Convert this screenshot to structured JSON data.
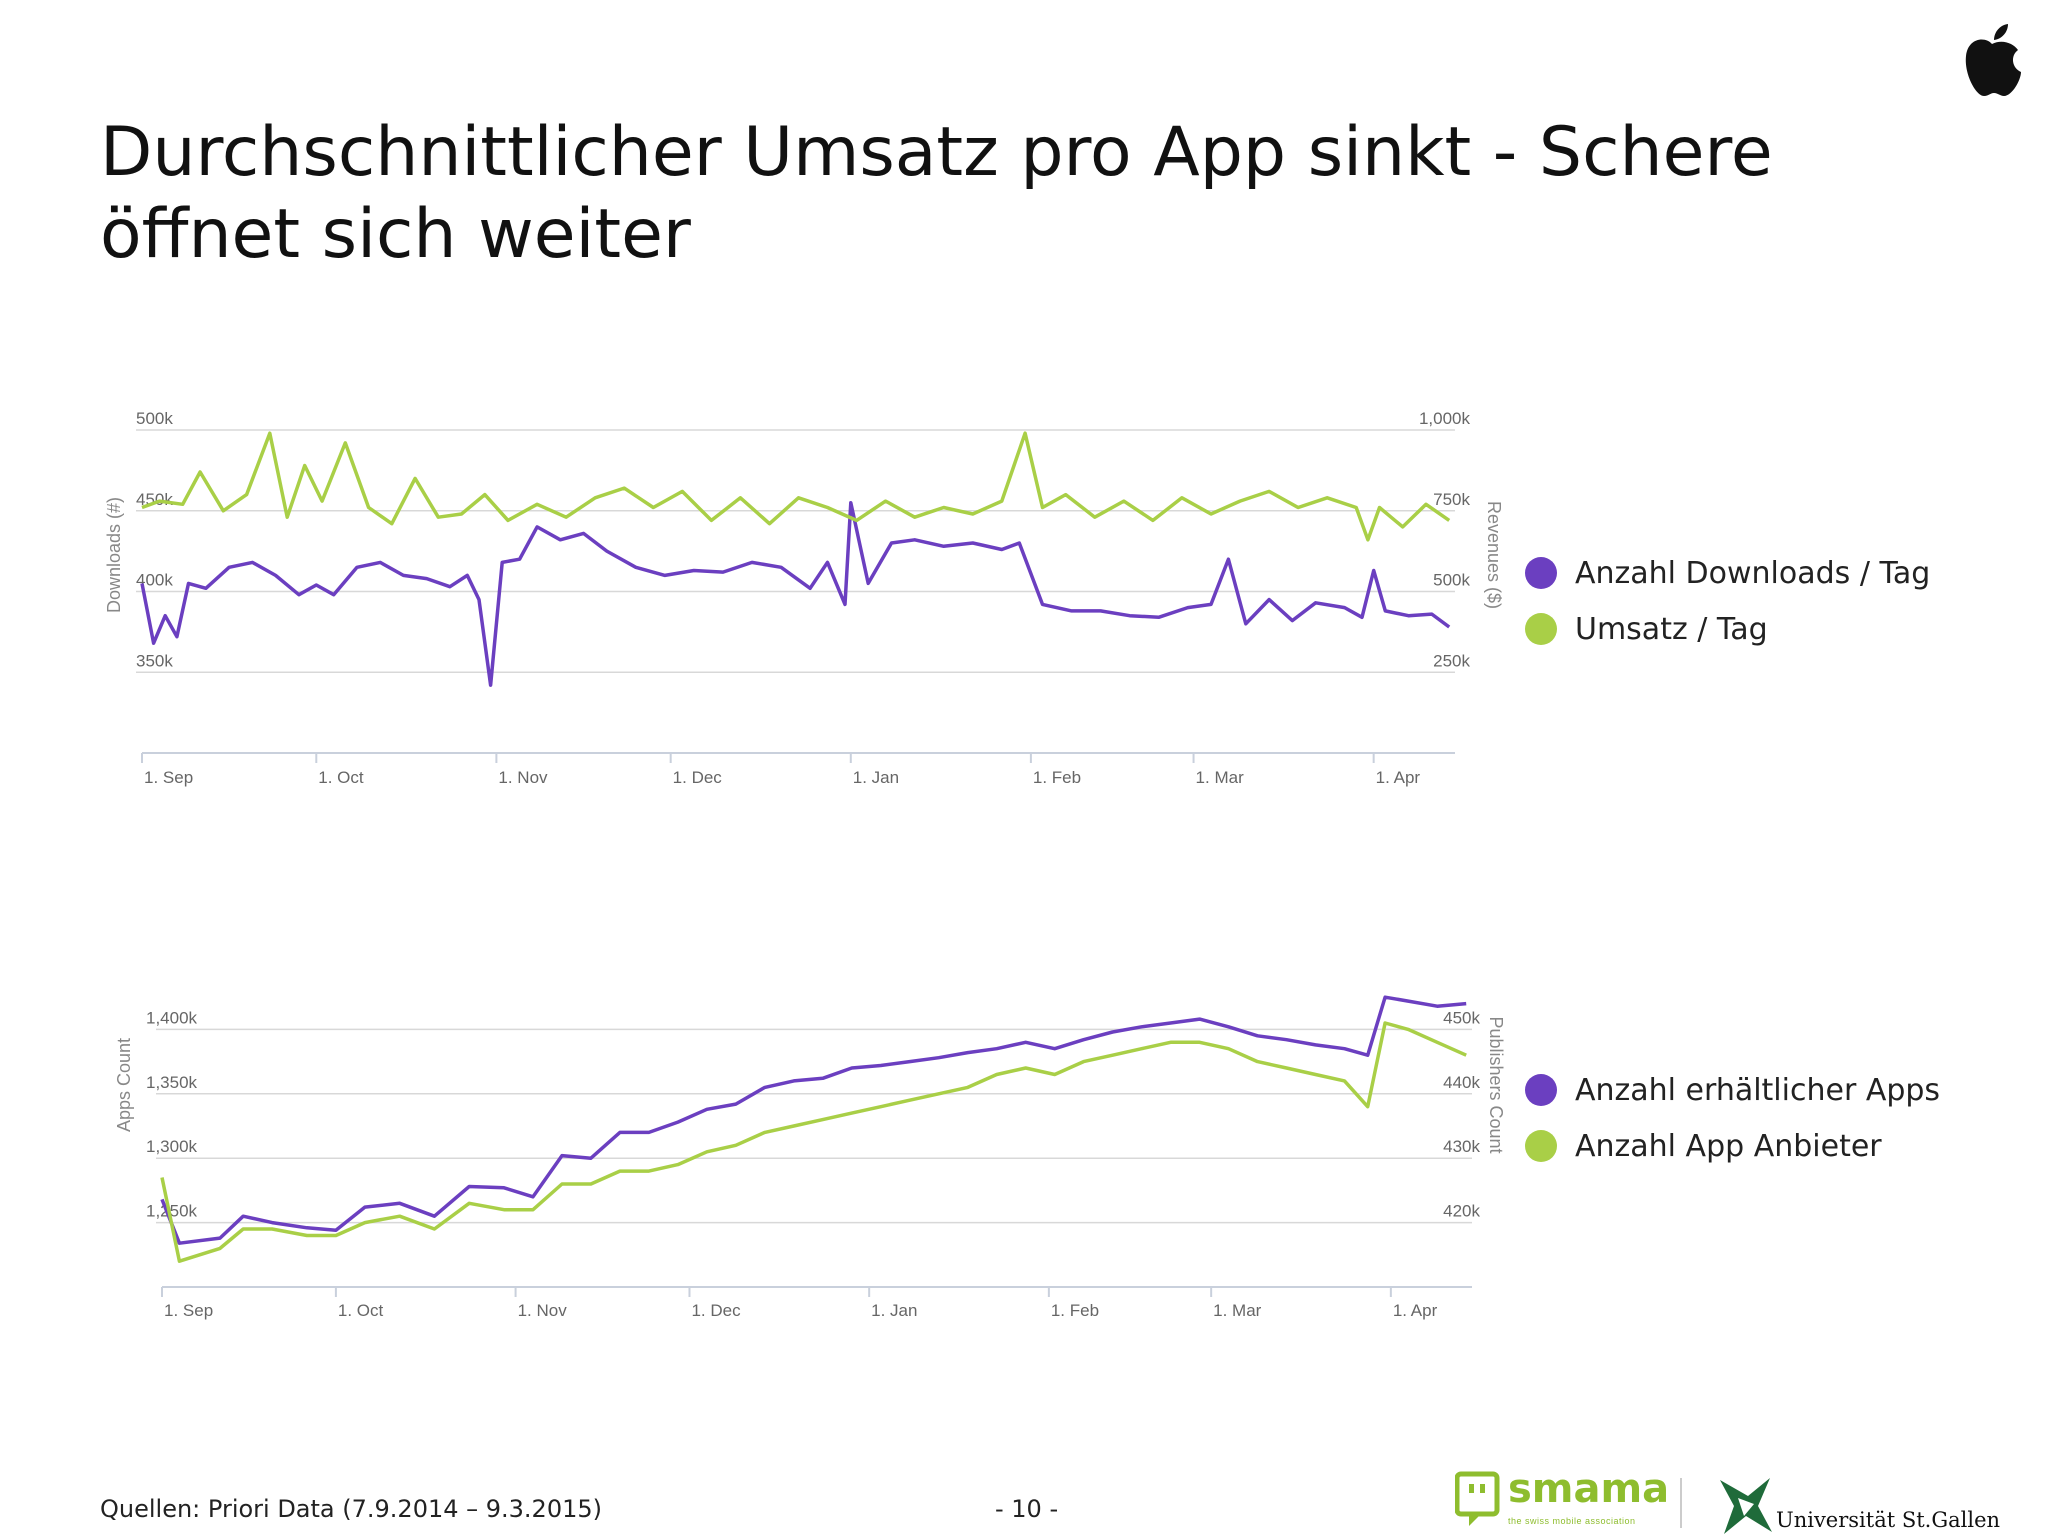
{
  "title": "Durchschnittlicher Umsatz pro App sinkt - Schere öffnet sich weiter",
  "footer": {
    "source": "Quellen: Priori Data (7.9.2014 – 9.3.2015)",
    "page": "- 10 -"
  },
  "logos": {
    "apple": "apple-logo",
    "smama_word": "smama",
    "smama_tagline": "the swiss mobile association",
    "unisg_word": "Universität St.Gallen"
  },
  "colors": {
    "purple": "#6b3fc0",
    "green": "#a9cf47"
  },
  "legend_top": [
    {
      "label": "Anzahl Downloads / Tag",
      "color": "#6b3fc0"
    },
    {
      "label": "Umsatz / Tag",
      "color": "#a9cf47"
    }
  ],
  "legend_bottom": [
    {
      "label": "Anzahl erhältlicher Apps",
      "color": "#6b3fc0"
    },
    {
      "label": "Anzahl App Anbieter",
      "color": "#a9cf47"
    }
  ],
  "chart_data": [
    {
      "type": "line",
      "x_range": [
        "2014-09-01",
        "2015-04-15"
      ],
      "x_ticks": [
        "1. Sep",
        "1. Oct",
        "1. Nov",
        "1. Dec",
        "1. Jan",
        "1. Feb",
        "1. Mar",
        "1. Apr"
      ],
      "ylabel": "Downloads (#)",
      "ylim": [
        300,
        500
      ],
      "y_ticks": [
        "350k",
        "400k",
        "450k",
        "500k"
      ],
      "y2label": "Revenues ($)",
      "y2lim": [
        0,
        1000
      ],
      "y2_ticks": [
        "250k",
        "500k",
        "750k",
        "1,000k"
      ],
      "grid": true,
      "series": [
        {
          "name": "Anzahl Downloads / Tag",
          "axis": "left",
          "color": "#6b3fc0",
          "x": [
            "2014-09-01",
            "2014-09-03",
            "2014-09-05",
            "2014-09-07",
            "2014-09-09",
            "2014-09-12",
            "2014-09-16",
            "2014-09-20",
            "2014-09-24",
            "2014-09-28",
            "2014-10-01",
            "2014-10-04",
            "2014-10-08",
            "2014-10-12",
            "2014-10-16",
            "2014-10-20",
            "2014-10-24",
            "2014-10-27",
            "2014-10-29",
            "2014-10-31",
            "2014-11-02",
            "2014-11-05",
            "2014-11-08",
            "2014-11-12",
            "2014-11-16",
            "2014-11-20",
            "2014-11-25",
            "2014-11-30",
            "2014-12-05",
            "2014-12-10",
            "2014-12-15",
            "2014-12-20",
            "2014-12-25",
            "2014-12-28",
            "2014-12-31",
            "2015-01-01",
            "2015-01-04",
            "2015-01-08",
            "2015-01-12",
            "2015-01-17",
            "2015-01-22",
            "2015-01-27",
            "2015-01-30",
            "2015-02-03",
            "2015-02-08",
            "2015-02-13",
            "2015-02-18",
            "2015-02-23",
            "2015-02-28",
            "2015-03-04",
            "2015-03-07",
            "2015-03-10",
            "2015-03-14",
            "2015-03-18",
            "2015-03-22",
            "2015-03-27",
            "2015-03-30",
            "2015-04-01",
            "2015-04-03",
            "2015-04-07",
            "2015-04-11",
            "2015-04-14"
          ],
          "y": [
            405,
            368,
            385,
            372,
            405,
            402,
            415,
            418,
            410,
            398,
            404,
            398,
            415,
            418,
            410,
            408,
            403,
            410,
            395,
            342,
            418,
            420,
            440,
            432,
            436,
            425,
            415,
            410,
            413,
            412,
            418,
            415,
            402,
            418,
            392,
            455,
            405,
            430,
            432,
            428,
            430,
            426,
            430,
            392,
            388,
            388,
            385,
            384,
            390,
            392,
            420,
            380,
            395,
            382,
            393,
            390,
            384,
            413,
            388,
            385,
            386,
            378
          ]
        },
        {
          "name": "Umsatz / Tag",
          "axis": "right",
          "color": "#a9cf47",
          "x": [
            "2014-09-01",
            "2014-09-04",
            "2014-09-08",
            "2014-09-11",
            "2014-09-15",
            "2014-09-19",
            "2014-09-23",
            "2014-09-26",
            "2014-09-29",
            "2014-10-02",
            "2014-10-06",
            "2014-10-10",
            "2014-10-14",
            "2014-10-18",
            "2014-10-22",
            "2014-10-26",
            "2014-10-30",
            "2014-11-03",
            "2014-11-08",
            "2014-11-13",
            "2014-11-18",
            "2014-11-23",
            "2014-11-28",
            "2014-12-03",
            "2014-12-08",
            "2014-12-13",
            "2014-12-18",
            "2014-12-23",
            "2014-12-28",
            "2015-01-02",
            "2015-01-07",
            "2015-01-12",
            "2015-01-17",
            "2015-01-22",
            "2015-01-27",
            "2015-01-31",
            "2015-02-03",
            "2015-02-07",
            "2015-02-12",
            "2015-02-17",
            "2015-02-22",
            "2015-02-27",
            "2015-03-04",
            "2015-03-09",
            "2015-03-14",
            "2015-03-19",
            "2015-03-24",
            "2015-03-29",
            "2015-03-31",
            "2015-04-02",
            "2015-04-06",
            "2015-04-10",
            "2015-04-14"
          ],
          "y": [
            760,
            780,
            770,
            870,
            750,
            800,
            990,
            730,
            890,
            780,
            960,
            760,
            710,
            850,
            730,
            740,
            800,
            720,
            770,
            730,
            790,
            820,
            760,
            810,
            720,
            790,
            710,
            790,
            760,
            720,
            780,
            730,
            760,
            740,
            780,
            990,
            760,
            800,
            730,
            780,
            720,
            790,
            740,
            780,
            810,
            760,
            790,
            760,
            660,
            760,
            700,
            770,
            720
          ]
        }
      ]
    },
    {
      "type": "line",
      "x_range": [
        "2014-09-01",
        "2015-04-15"
      ],
      "x_ticks": [
        "1. Sep",
        "1. Oct",
        "1. Nov",
        "1. Dec",
        "1. Jan",
        "1. Feb",
        "1. Mar",
        "1. Apr"
      ],
      "ylabel": "Apps Count",
      "ylim": [
        1200,
        1450
      ],
      "y_ticks": [
        "1,250k",
        "1,300k",
        "1,350k",
        "1,400k"
      ],
      "y2label": "Publishers Count",
      "y2lim": [
        410,
        460
      ],
      "y2_ticks": [
        "420k",
        "430k",
        "440k",
        "450k"
      ],
      "grid": true,
      "series": [
        {
          "name": "Anzahl erhältlicher Apps",
          "axis": "left",
          "color": "#6b3fc0",
          "x": [
            "2014-09-01",
            "2014-09-04",
            "2014-09-11",
            "2014-09-15",
            "2014-09-20",
            "2014-09-26",
            "2014-10-01",
            "2014-10-06",
            "2014-10-12",
            "2014-10-18",
            "2014-10-24",
            "2014-10-30",
            "2014-11-04",
            "2014-11-09",
            "2014-11-14",
            "2014-11-19",
            "2014-11-24",
            "2014-11-29",
            "2014-12-04",
            "2014-12-09",
            "2014-12-14",
            "2014-12-19",
            "2014-12-24",
            "2014-12-29",
            "2015-01-03",
            "2015-01-08",
            "2015-01-13",
            "2015-01-18",
            "2015-01-23",
            "2015-01-28",
            "2015-02-02",
            "2015-02-07",
            "2015-02-12",
            "2015-02-17",
            "2015-02-22",
            "2015-02-27",
            "2015-03-04",
            "2015-03-09",
            "2015-03-14",
            "2015-03-19",
            "2015-03-24",
            "2015-03-28",
            "2015-03-31",
            "2015-04-04",
            "2015-04-09",
            "2015-04-14"
          ],
          "y": [
            1268,
            1234,
            1238,
            1255,
            1250,
            1246,
            1244,
            1262,
            1265,
            1255,
            1278,
            1277,
            1270,
            1302,
            1300,
            1320,
            1320,
            1328,
            1338,
            1342,
            1355,
            1360,
            1362,
            1370,
            1372,
            1375,
            1378,
            1382,
            1385,
            1390,
            1385,
            1392,
            1398,
            1402,
            1405,
            1408,
            1402,
            1395,
            1392,
            1388,
            1385,
            1380,
            1425,
            1422,
            1418,
            1420
          ]
        },
        {
          "name": "Anzahl App Anbieter",
          "axis": "right",
          "color": "#a9cf47",
          "x": [
            "2014-09-01",
            "2014-09-04",
            "2014-09-11",
            "2014-09-15",
            "2014-09-20",
            "2014-09-26",
            "2014-10-01",
            "2014-10-06",
            "2014-10-12",
            "2014-10-18",
            "2014-10-24",
            "2014-10-30",
            "2014-11-04",
            "2014-11-09",
            "2014-11-14",
            "2014-11-19",
            "2014-11-24",
            "2014-11-29",
            "2014-12-04",
            "2014-12-09",
            "2014-12-14",
            "2014-12-19",
            "2014-12-24",
            "2014-12-29",
            "2015-01-03",
            "2015-01-08",
            "2015-01-13",
            "2015-01-18",
            "2015-01-23",
            "2015-01-28",
            "2015-02-02",
            "2015-02-07",
            "2015-02-12",
            "2015-02-17",
            "2015-02-22",
            "2015-02-27",
            "2015-03-04",
            "2015-03-09",
            "2015-03-14",
            "2015-03-19",
            "2015-03-24",
            "2015-03-28",
            "2015-03-31",
            "2015-04-04",
            "2015-04-09",
            "2015-04-14"
          ],
          "y": [
            427,
            414,
            416,
            419,
            419,
            418,
            418,
            420,
            421,
            419,
            423,
            422,
            422,
            426,
            426,
            428,
            428,
            429,
            431,
            432,
            434,
            435,
            436,
            437,
            438,
            439,
            440,
            441,
            443,
            444,
            443,
            445,
            446,
            447,
            448,
            448,
            447,
            445,
            444,
            443,
            442,
            438,
            451,
            450,
            448,
            446
          ]
        }
      ]
    }
  ]
}
